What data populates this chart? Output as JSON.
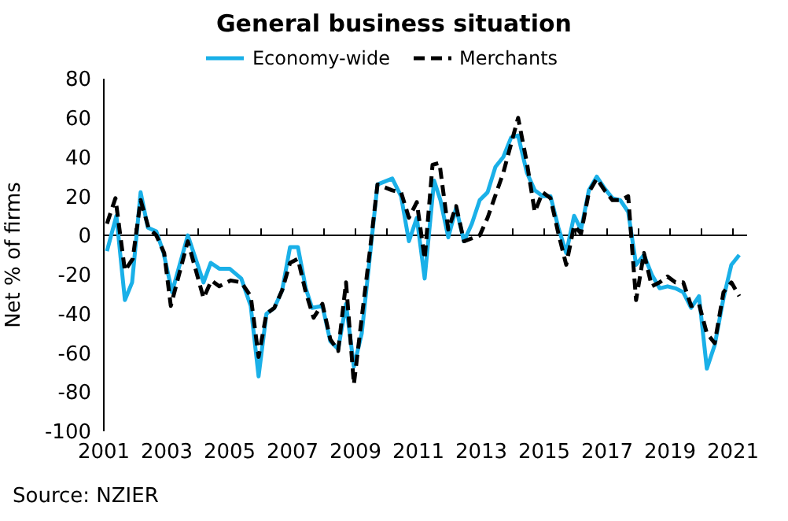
{
  "chart_data": {
    "type": "line",
    "title": "General business situation",
    "ylabel": "Net % of firms",
    "annotations": [
      "Source: NZIER"
    ],
    "legend": "top",
    "grid": false,
    "xlim": [
      2001,
      2021.45
    ],
    "xticks": [
      2001,
      {
        "value": 2002,
        "label": null
      },
      2003,
      {
        "value": 2004,
        "label": null
      },
      2005,
      {
        "value": 2006,
        "label": null
      },
      2007,
      {
        "value": 2008,
        "label": null
      },
      2009,
      {
        "value": 2010,
        "label": null
      },
      2011,
      {
        "value": 2012,
        "label": null
      },
      2013,
      {
        "value": 2014,
        "label": null
      },
      2015,
      {
        "value": 2016,
        "label": null
      },
      2017,
      {
        "value": 2018,
        "label": null
      },
      2019,
      {
        "value": 2020,
        "label": null
      },
      2021
    ],
    "ylim": [
      -100,
      80
    ],
    "yticks": [
      -100,
      -80,
      -60,
      -40,
      -20,
      0,
      20,
      40,
      60,
      80
    ],
    "ref_lines": [
      {
        "axis": "y",
        "value": 0,
        "color": "#000000"
      }
    ],
    "series": [
      {
        "name": "Economy-wide",
        "color": "#1ab0e8",
        "line_style": "solid",
        "x": [
          2001.1,
          2001.4,
          2001.67,
          2001.9,
          2002.17,
          2002.4,
          2002.67,
          2002.9,
          2003.17,
          2003.67,
          2004.17,
          2004.4,
          2004.67,
          2005.0,
          2005.37,
          2005.67,
          2005.92,
          2006.17,
          2006.42,
          2006.67,
          2006.92,
          2007.17,
          2007.42,
          2007.62,
          2007.95,
          2008.2,
          2008.45,
          2008.7,
          2008.95,
          2009.2,
          2009.45,
          2009.7,
          2010.17,
          2010.45,
          2010.7,
          2010.95,
          2011.2,
          2011.5,
          2011.7,
          2011.95,
          2012.2,
          2012.45,
          2012.7,
          2012.95,
          2013.2,
          2013.45,
          2013.7,
          2013.95,
          2014.17,
          2014.45,
          2014.7,
          2014.95,
          2015.2,
          2015.45,
          2015.7,
          2015.95,
          2016.17,
          2016.42,
          2016.67,
          2016.92,
          2017.17,
          2017.42,
          2017.67,
          2017.92,
          2018.17,
          2018.42,
          2018.67,
          2018.92,
          2019.17,
          2019.42,
          2019.67,
          2019.92,
          2020.17,
          2020.42,
          2020.7,
          2020.95,
          2021.2
        ],
        "values": [
          -8,
          10,
          -33,
          -24,
          22,
          4,
          2,
          -9,
          -29,
          0,
          -24,
          -14,
          -17,
          -17,
          -22,
          -36,
          -72,
          -40,
          -37,
          -28,
          -6,
          -6,
          -27,
          -37,
          -36,
          -54,
          -58,
          -35,
          -67,
          -50,
          -12,
          26,
          29,
          20,
          -3,
          9,
          -22,
          28,
          18,
          -1,
          14,
          -3,
          6,
          18,
          22,
          35,
          40,
          50,
          51,
          32,
          23,
          20,
          20,
          4,
          -9,
          10,
          3,
          23,
          30,
          24,
          19,
          18,
          12,
          -15,
          -10,
          -20,
          -27,
          -26,
          -27,
          -29,
          -37,
          -31,
          -68,
          -56,
          -32,
          -15,
          -10
        ]
      },
      {
        "name": "Merchants",
        "color": "#000000",
        "line_style": "dashed",
        "x": [
          2001.1,
          2001.37,
          2001.67,
          2001.92,
          2002.17,
          2002.42,
          2002.67,
          2002.92,
          2003.13,
          2003.67,
          2004.17,
          2004.42,
          2004.67,
          2005.03,
          2005.37,
          2005.67,
          2005.92,
          2006.17,
          2006.42,
          2006.67,
          2006.92,
          2007.17,
          2007.42,
          2007.67,
          2007.95,
          2008.2,
          2008.45,
          2008.7,
          2008.95,
          2009.2,
          2009.45,
          2009.7,
          2010.17,
          2010.45,
          2010.7,
          2010.95,
          2011.2,
          2011.45,
          2011.67,
          2011.95,
          2012.2,
          2012.45,
          2012.95,
          2013.2,
          2013.7,
          2014.17,
          2014.45,
          2014.7,
          2014.95,
          2015.2,
          2015.45,
          2015.7,
          2015.95,
          2016.17,
          2016.42,
          2016.67,
          2016.92,
          2017.17,
          2017.42,
          2017.67,
          2017.92,
          2018.17,
          2018.42,
          2018.67,
          2018.92,
          2019.17,
          2019.42,
          2019.67,
          2019.92,
          2020.17,
          2020.42,
          2020.7,
          2020.95,
          2021.2
        ],
        "values": [
          6,
          19,
          -18,
          -12,
          18,
          4,
          0,
          -9,
          -36,
          -3,
          -32,
          -23,
          -26,
          -23,
          -24,
          -31,
          -62,
          -40,
          -37,
          -28,
          -14,
          -12,
          -29,
          -42,
          -35,
          -53,
          -59,
          -24,
          -76,
          -42,
          -9,
          26,
          23,
          22,
          9,
          17,
          -12,
          36,
          37,
          3,
          15,
          -3,
          0,
          9,
          32,
          60,
          37,
          12,
          22,
          19,
          1,
          -15,
          5,
          1,
          22,
          29,
          23,
          18,
          18,
          20,
          -33,
          -9,
          -26,
          -24,
          -21,
          -24,
          -24,
          -36,
          -35,
          -50,
          -55,
          -29,
          -24,
          -31
        ]
      }
    ]
  }
}
